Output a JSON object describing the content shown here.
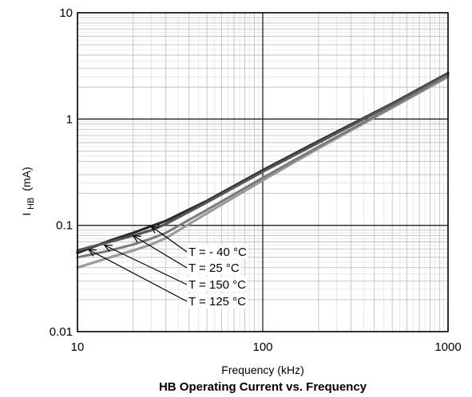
{
  "chart_data": {
    "type": "line",
    "title": "HB Operating Current vs. Frequency",
    "xlabel": "Frequency (kHz)",
    "ylabel_main": "I",
    "ylabel_sub": "HB",
    "ylabel_unit": "(mA)",
    "x_scale": "log",
    "y_scale": "log",
    "xlim": [
      10,
      1000
    ],
    "ylim": [
      0.01,
      10
    ],
    "grid": true,
    "x_ticks": [
      {
        "value": 10,
        "label": "10"
      },
      {
        "value": 100,
        "label": "100"
      },
      {
        "value": 1000,
        "label": "1000"
      }
    ],
    "y_ticks": [
      {
        "value": 10,
        "label": "10"
      },
      {
        "value": 1,
        "label": "1"
      },
      {
        "value": 0.1,
        "label": "0.1"
      },
      {
        "value": 0.01,
        "label": "0.01"
      }
    ],
    "series": [
      {
        "name": "T = - 40 °C",
        "color": "#2a2a2a",
        "width": 3.2,
        "x": [
          10,
          15,
          20,
          25,
          30,
          50,
          100,
          200,
          500,
          1000
        ],
        "y": [
          0.055,
          0.072,
          0.085,
          0.098,
          0.11,
          0.17,
          0.33,
          0.62,
          1.4,
          2.7
        ],
        "annotation": {
          "label": "T = - 40 °C",
          "arrow_x": 25,
          "arrow_y": 0.098
        }
      },
      {
        "name": "T = 25 °C",
        "color": "#555555",
        "width": 3.2,
        "x": [
          10,
          15,
          20,
          25,
          30,
          50,
          100,
          200,
          500,
          1000
        ],
        "y": [
          0.058,
          0.07,
          0.08,
          0.09,
          0.103,
          0.165,
          0.32,
          0.6,
          1.38,
          2.65
        ],
        "annotation": {
          "label": "T = 25 °C",
          "arrow_x": 20,
          "arrow_y": 0.08
        }
      },
      {
        "name": "T = 150 °C",
        "color": "#9a9a9a",
        "width": 3.2,
        "x": [
          10,
          15,
          20,
          25,
          30,
          50,
          100,
          200,
          500,
          1000
        ],
        "y": [
          0.04,
          0.05,
          0.058,
          0.066,
          0.076,
          0.13,
          0.265,
          0.53,
          1.28,
          2.5
        ],
        "annotation": {
          "label": "T = 150 °C",
          "arrow_x": 14,
          "arrow_y": 0.065
        }
      },
      {
        "name": "T = 125 °C",
        "color": "#7a7a7a",
        "width": 3.0,
        "x": [
          10,
          15,
          20,
          25,
          30,
          50,
          100,
          200,
          500,
          1000
        ],
        "y": [
          0.05,
          0.058,
          0.066,
          0.075,
          0.085,
          0.14,
          0.28,
          0.55,
          1.3,
          2.55
        ],
        "annotation": {
          "label": "T = 125 °C",
          "arrow_x": 11.5,
          "arrow_y": 0.059
        }
      }
    ]
  }
}
